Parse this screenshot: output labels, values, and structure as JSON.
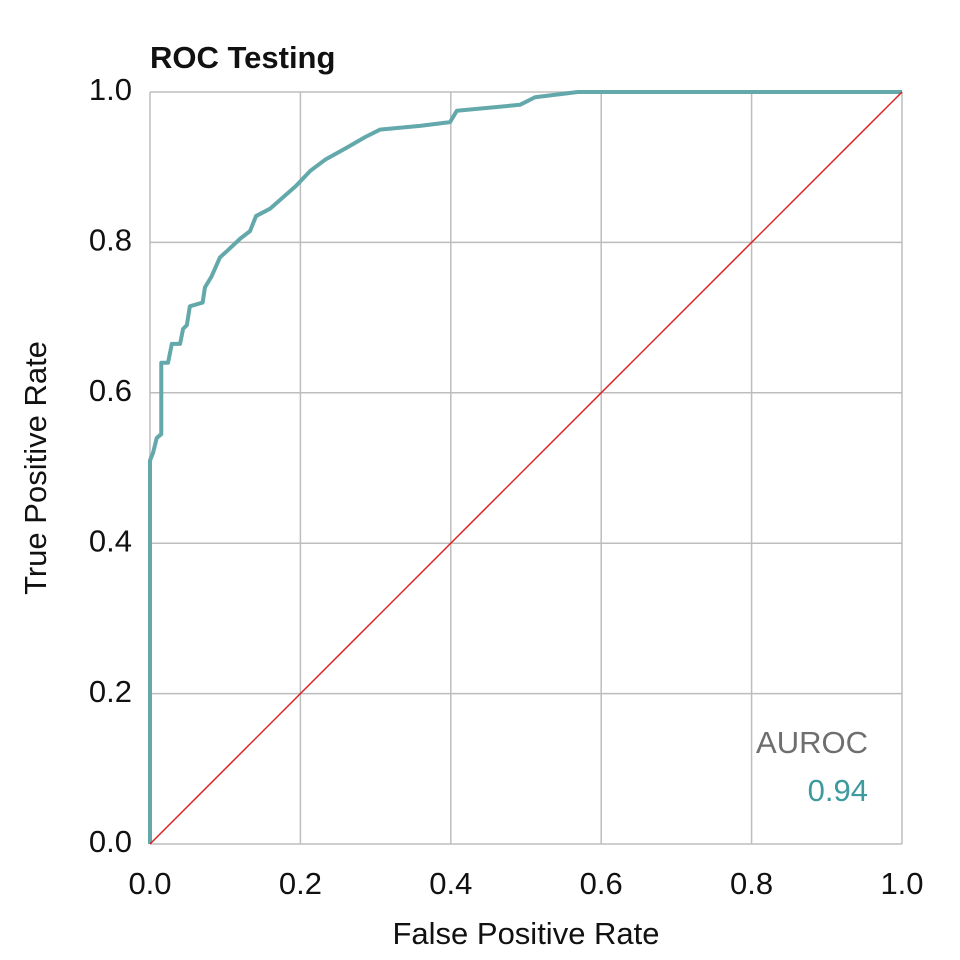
{
  "chart_data": {
    "type": "line",
    "title": "ROC Testing",
    "x_label": "False Positive Rate",
    "y_label": "True Positive Rate",
    "xlim": [
      0,
      1
    ],
    "ylim": [
      0,
      1
    ],
    "xticks": [
      {
        "value": 0,
        "label": "0.0"
      },
      0.2,
      0.4,
      0.6,
      0.8,
      {
        "value": 1,
        "label": "1.0"
      }
    ],
    "yticks": [
      {
        "value": 0,
        "label": "0.0"
      },
      0.2,
      0.4,
      0.6,
      0.8,
      {
        "value": 1,
        "label": "1.0"
      }
    ],
    "grid": true,
    "series": [
      {
        "color": "#63a8ab",
        "x": [
          0,
          0,
          0.004,
          0.009,
          0.015,
          0.015,
          0.024,
          0.029,
          0.04,
          0.044,
          0.049,
          0.053,
          0.07,
          0.073,
          0.082,
          0.093,
          0.104,
          0.12,
          0.133,
          0.141,
          0.16,
          0.177,
          0.194,
          0.213,
          0.233,
          0.26,
          0.286,
          0.306,
          0.359,
          0.399,
          0.408,
          0.492,
          0.512,
          0.569,
          1
        ],
        "values": [
          0,
          0.51,
          0.52,
          0.54,
          0.545,
          0.64,
          0.64,
          0.665,
          0.665,
          0.685,
          0.69,
          0.715,
          0.72,
          0.74,
          0.755,
          0.78,
          0.79,
          0.805,
          0.815,
          0.835,
          0.845,
          0.86,
          0.875,
          0.895,
          0.91,
          0.925,
          0.94,
          0.95,
          0.955,
          0.96,
          0.975,
          0.983,
          0.993,
          1,
          1
        ]
      },
      {
        "color": "#e02020",
        "x": [
          0,
          1
        ],
        "values": [
          0,
          1
        ]
      }
    ],
    "annotations": {
      "label": "AUROC",
      "auroc": 0.94,
      "label_color": "#6e6e6e",
      "auroc_color": "#3d9a9e"
    }
  }
}
